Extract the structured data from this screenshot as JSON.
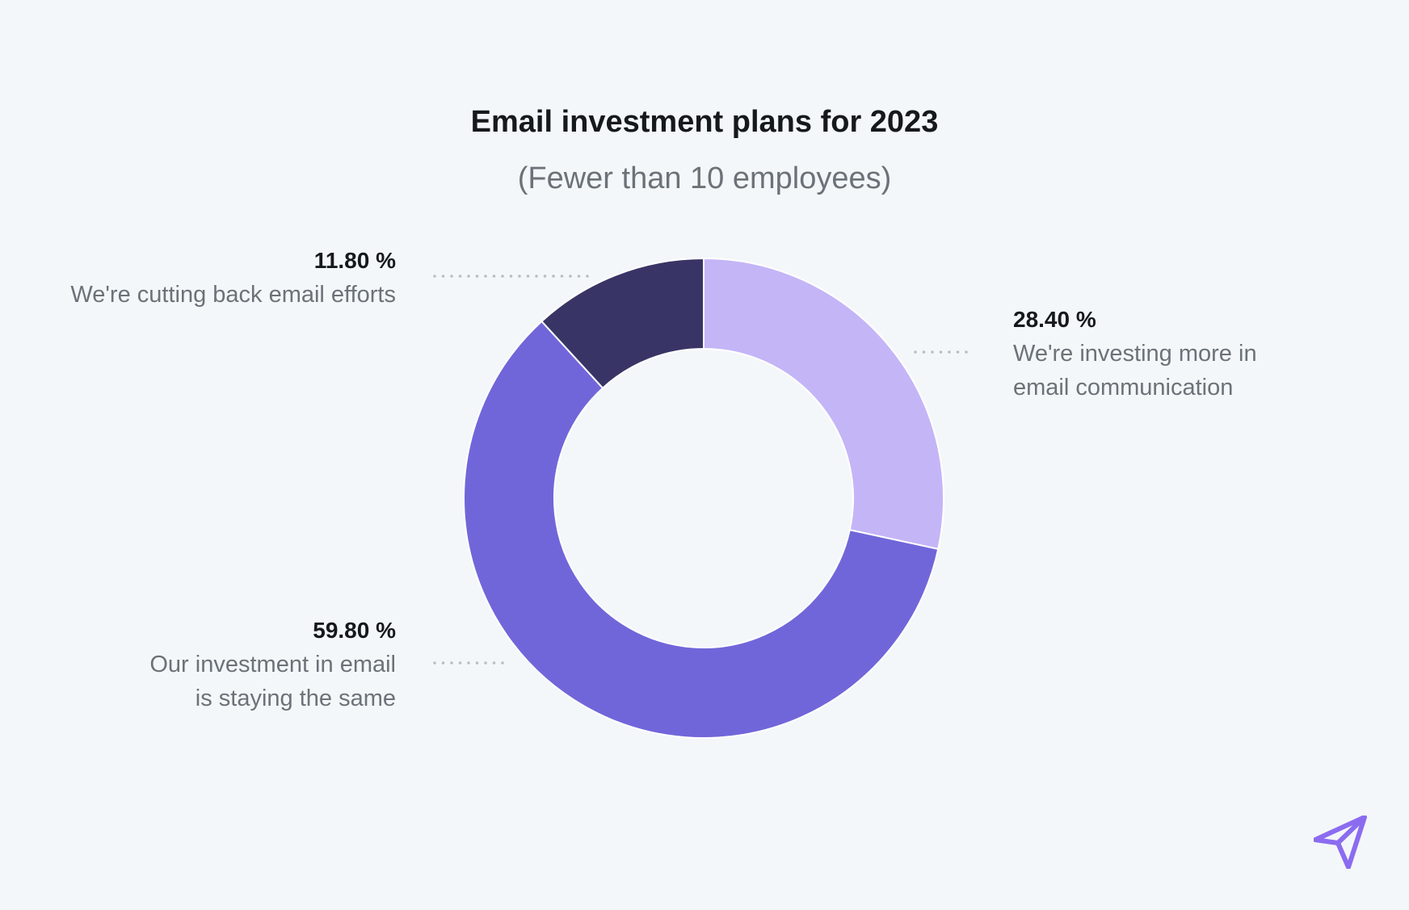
{
  "chart_data": {
    "type": "pie",
    "donut": true,
    "title": "Email investment plans for 2023",
    "subtitle": "(Fewer than 10 employees)",
    "slices": [
      {
        "label_pct": "28.40 %",
        "label_line1": "We're investing more in",
        "label_line2": "email communication",
        "value": 28.4,
        "color": "#c4b5f7"
      },
      {
        "label_pct": "59.80 %",
        "label_line1": "Our investment in email",
        "label_line2": "is staying the same",
        "value": 59.8,
        "color": "#7166d9"
      },
      {
        "label_pct": "11.80 %",
        "label_line1": "We're cutting back email efforts",
        "label_line2": "",
        "value": 11.8,
        "color": "#383566"
      }
    ]
  },
  "colors": {
    "background": "#f4f7f9",
    "accent": "#8b6cf0"
  },
  "icons": {
    "brand": "paper-plane-logo-icon"
  }
}
